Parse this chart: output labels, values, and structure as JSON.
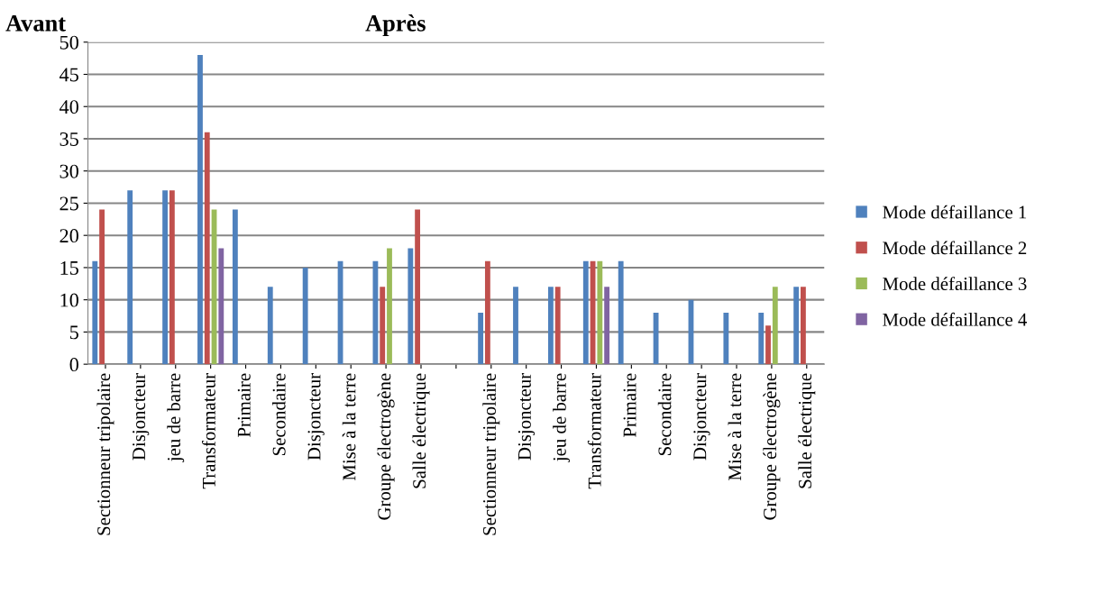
{
  "chart_data": {
    "type": "bar",
    "categories": [
      "Sectionneur tripolaire",
      "Disjoncteur",
      "jeu de barre",
      "Transformateur",
      "Primaire",
      "Secondaire",
      "Disjoncteur",
      "Mise à la terre",
      "Groupe électrogène",
      "Salle électrique",
      null,
      "Sectionneur tripolaire",
      "Disjoncteur",
      "jeu de barre",
      "Transformateur",
      "Primaire",
      "Secondaire",
      "Disjoncteur",
      "Mise à la terre",
      "Groupe électrogène",
      "Salle électrique"
    ],
    "series": [
      {
        "name": "Mode défaillance 1",
        "color": "#4f81bd",
        "values": [
          16,
          27,
          27,
          48,
          24,
          12,
          15,
          16,
          16,
          18,
          null,
          8,
          12,
          12,
          16,
          16,
          8,
          10,
          8,
          8,
          12
        ]
      },
      {
        "name": "Mode défaillance 2",
        "color": "#c0504d",
        "values": [
          24,
          null,
          27,
          36,
          null,
          null,
          null,
          null,
          12,
          24,
          null,
          16,
          null,
          12,
          16,
          null,
          null,
          null,
          null,
          6,
          12
        ]
      },
      {
        "name": "Mode défaillance 3",
        "color": "#9bbb59",
        "values": [
          null,
          null,
          null,
          24,
          null,
          null,
          null,
          null,
          18,
          null,
          null,
          null,
          null,
          null,
          16,
          null,
          null,
          null,
          null,
          12,
          null
        ]
      },
      {
        "name": "Mode défaillance 4",
        "color": "#8064a2",
        "values": [
          null,
          null,
          null,
          18,
          null,
          null,
          null,
          null,
          null,
          null,
          null,
          null,
          null,
          null,
          12,
          null,
          null,
          null,
          null,
          null,
          null
        ]
      }
    ],
    "annotations": [
      "Avant",
      "Après"
    ],
    "ylim": [
      0,
      50
    ],
    "yticks": [
      0,
      5,
      10,
      15,
      20,
      25,
      30,
      35,
      40,
      45,
      50
    ],
    "grid": "y",
    "legend": "right"
  }
}
